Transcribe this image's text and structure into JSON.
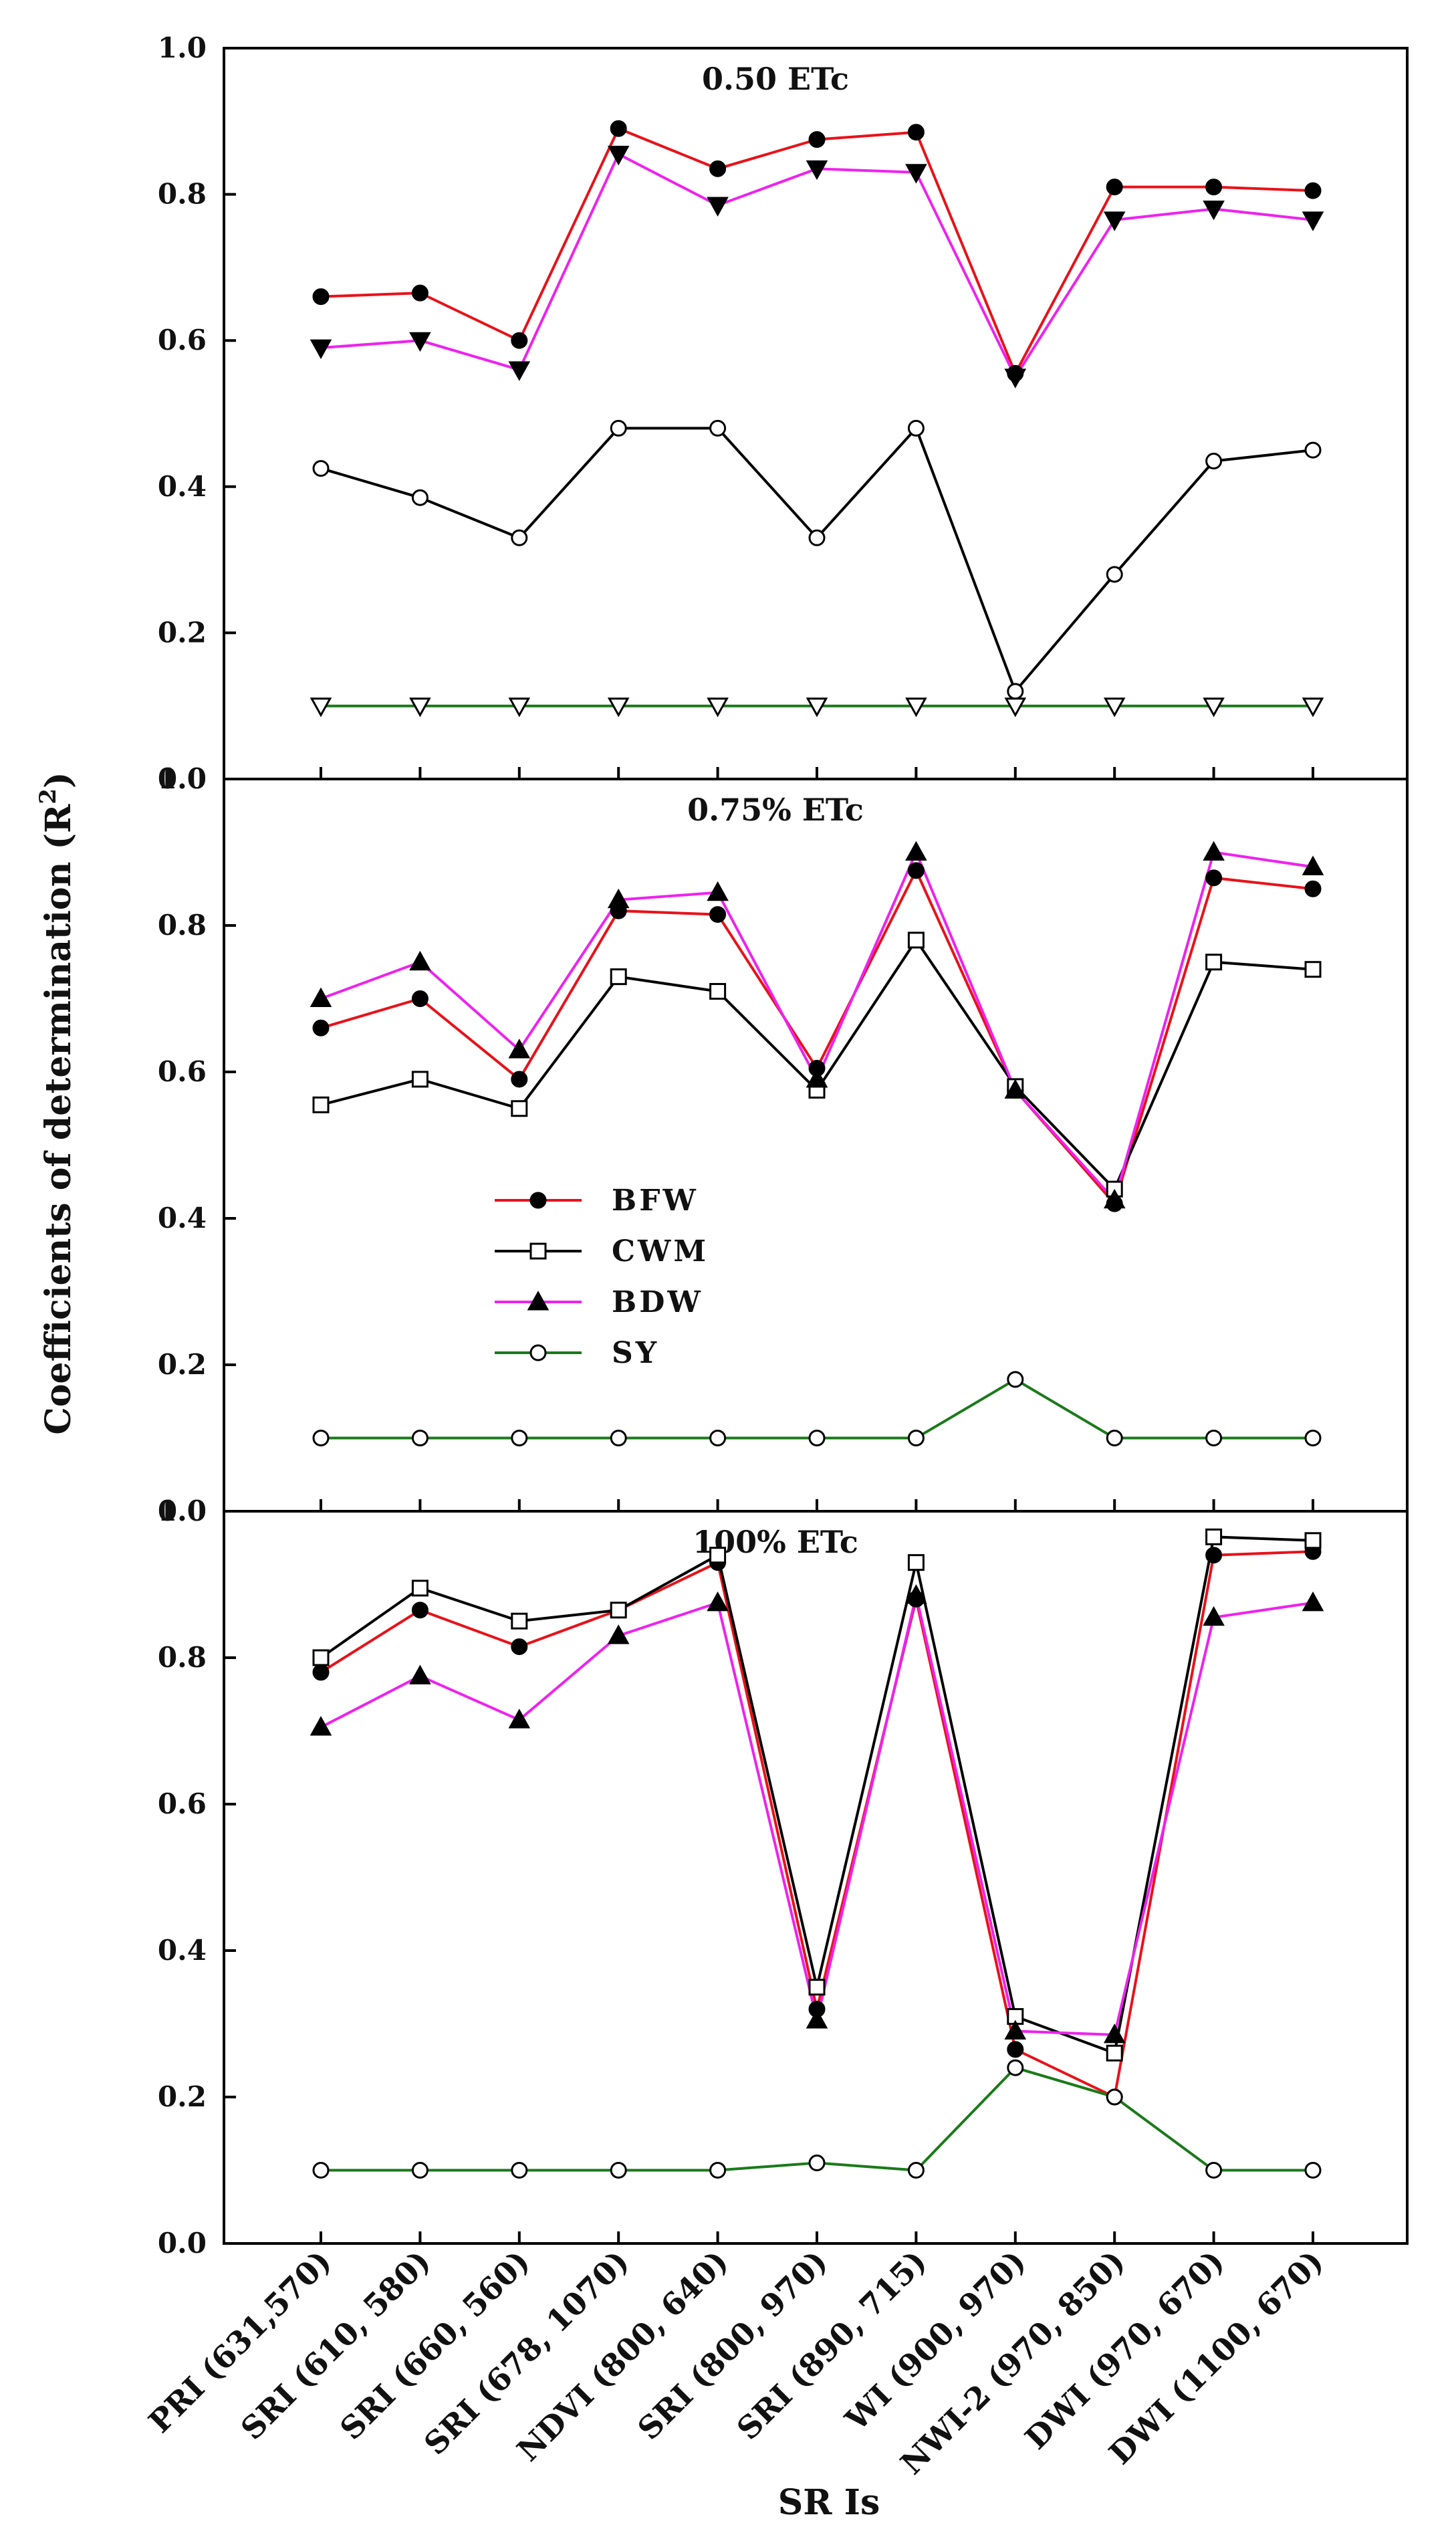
{
  "figure": {
    "y_axis_title": "Coefficients of determination (R",
    "y_axis_title_superscript": "2",
    "y_axis_title_close": ")",
    "x_axis_title": "SR Is"
  },
  "chart_data": [
    {
      "type": "line",
      "title": "0.50 ETc",
      "ylim": [
        0.0,
        1.0
      ],
      "yticks": [
        "0.0",
        "0.2",
        "0.4",
        "0.6",
        "0.8",
        "1.0"
      ],
      "categories": [
        "PRI (631,570)",
        "SRI (610, 580)",
        "SRI (660, 560)",
        "SRI (678, 1070)",
        "NDVI (800, 640)",
        "SRI (800, 970)",
        "SRI (890, 715)",
        "WI (900, 970)",
        "NWI-2 (970, 850)",
        "DWI (970, 670)",
        "DWI (1100, 670)"
      ],
      "series": [
        {
          "name": "BFW",
          "color": "#e8121a",
          "marker": "filled-circle",
          "values": [
            0.66,
            0.665,
            0.6,
            0.89,
            0.835,
            0.875,
            0.885,
            0.555,
            0.81,
            0.81,
            0.805
          ]
        },
        {
          "name": "BDW",
          "color": "#ee22ee",
          "marker": "filled-triangle-down",
          "values": [
            0.59,
            0.6,
            0.56,
            0.855,
            0.785,
            0.835,
            0.83,
            0.55,
            0.765,
            0.78,
            0.765
          ]
        },
        {
          "name": "CWM",
          "color": "#000000",
          "marker": "open-circle",
          "values": [
            0.425,
            0.385,
            0.33,
            0.48,
            0.48,
            0.33,
            0.48,
            0.12,
            0.28,
            0.435,
            0.45
          ]
        },
        {
          "name": "SY",
          "color": "#1a7a1a",
          "marker": "open-triangle-down",
          "values": [
            0.1,
            0.1,
            0.1,
            0.1,
            0.1,
            0.1,
            0.1,
            0.1,
            0.1,
            0.1,
            0.1
          ]
        }
      ]
    },
    {
      "type": "line",
      "title": "0.75% ETc",
      "ylim": [
        0.0,
        1.0
      ],
      "yticks": [
        "0.0",
        "0.2",
        "0.4",
        "0.6",
        "0.8",
        "1.0"
      ],
      "categories": [
        "PRI (631,570)",
        "SRI (610, 580)",
        "SRI (660, 560)",
        "SRI (678, 1070)",
        "NDVI (800, 640)",
        "SRI (800, 970)",
        "SRI (890, 715)",
        "WI (900, 970)",
        "NWI-2 (970, 850)",
        "DWI (970, 670)",
        "DWI (1100, 670)"
      ],
      "series": [
        {
          "name": "BFW",
          "color": "#e8121a",
          "marker": "filled-circle",
          "values": [
            0.66,
            0.7,
            0.59,
            0.82,
            0.815,
            0.605,
            0.875,
            0.575,
            0.42,
            0.865,
            0.85
          ]
        },
        {
          "name": "CWM",
          "color": "#000000",
          "marker": "open-square",
          "values": [
            0.555,
            0.59,
            0.55,
            0.73,
            0.71,
            0.575,
            0.78,
            0.58,
            0.44,
            0.75,
            0.74
          ]
        },
        {
          "name": "BDW",
          "color": "#ee22ee",
          "marker": "filled-triangle-up",
          "values": [
            0.7,
            0.75,
            0.63,
            0.835,
            0.845,
            0.59,
            0.9,
            0.575,
            0.425,
            0.9,
            0.88
          ]
        },
        {
          "name": "SY",
          "color": "#1a7a1a",
          "marker": "open-circle",
          "values": [
            0.1,
            0.1,
            0.1,
            0.1,
            0.1,
            0.1,
            0.1,
            0.18,
            0.1,
            0.1,
            0.1
          ]
        }
      ],
      "legend": {
        "placement": "center-left",
        "entries": [
          {
            "name": "BFW",
            "color": "#e8121a",
            "marker": "filled-circle"
          },
          {
            "name": "CWM",
            "color": "#000000",
            "marker": "open-square"
          },
          {
            "name": "BDW",
            "color": "#ee22ee",
            "marker": "filled-triangle-up"
          },
          {
            "name": "SY",
            "color": "#1a7a1a",
            "marker": "open-circle"
          }
        ]
      }
    },
    {
      "type": "line",
      "title": "100% ETc",
      "ylim": [
        0.0,
        1.0
      ],
      "yticks": [
        "0.0",
        "0.2",
        "0.4",
        "0.6",
        "0.8",
        "1.0"
      ],
      "categories": [
        "PRI (631,570)",
        "SRI (610, 580)",
        "SRI (660, 560)",
        "SRI (678, 1070)",
        "NDVI (800, 640)",
        "SRI (800, 970)",
        "SRI (890, 715)",
        "WI (900, 970)",
        "NWI-2 (970, 850)",
        "DWI (970, 670)",
        "DWI (1100, 670)"
      ],
      "series": [
        {
          "name": "BFW",
          "color": "#e8121a",
          "marker": "filled-circle",
          "values": [
            0.78,
            0.865,
            0.815,
            0.865,
            0.93,
            0.32,
            0.88,
            0.265,
            0.2,
            0.94,
            0.945
          ]
        },
        {
          "name": "CWM",
          "color": "#000000",
          "marker": "open-square",
          "values": [
            0.8,
            0.895,
            0.85,
            0.865,
            0.94,
            0.35,
            0.93,
            0.31,
            0.26,
            0.965,
            0.96
          ]
        },
        {
          "name": "BDW",
          "color": "#ee22ee",
          "marker": "filled-triangle-up",
          "values": [
            0.705,
            0.775,
            0.715,
            0.83,
            0.875,
            0.305,
            0.885,
            0.29,
            0.285,
            0.855,
            0.875
          ]
        },
        {
          "name": "SY",
          "color": "#1a7a1a",
          "marker": "open-circle",
          "values": [
            0.1,
            0.1,
            0.1,
            0.1,
            0.1,
            0.11,
            0.1,
            0.24,
            0.2,
            0.1,
            0.1
          ]
        }
      ]
    }
  ]
}
